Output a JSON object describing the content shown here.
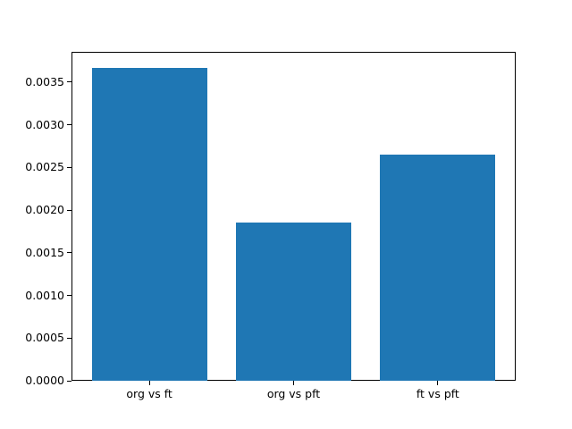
{
  "chart_data": {
    "type": "bar",
    "title": "",
    "xlabel": "",
    "ylabel": "",
    "categories": [
      "org vs ft",
      "org vs pft",
      "ft vs pft"
    ],
    "values": [
      0.00367,
      0.00185,
      0.00265
    ],
    "ylim": [
      0,
      0.0038535
    ],
    "yticks": [
      {
        "v": 0.0,
        "label": "0.0000"
      },
      {
        "v": 0.0005,
        "label": "0.0005"
      },
      {
        "v": 0.001,
        "label": "0.0010"
      },
      {
        "v": 0.0015,
        "label": "0.0015"
      },
      {
        "v": 0.002,
        "label": "0.0020"
      },
      {
        "v": 0.0025,
        "label": "0.0025"
      },
      {
        "v": 0.003,
        "label": "0.0030"
      },
      {
        "v": 0.0035,
        "label": "0.0035"
      }
    ],
    "grid": false,
    "legend_position": "none",
    "bar_color": "#1f77b4"
  },
  "colors": {
    "bar": "#1f77b4",
    "spine": "#000000",
    "text": "#000000",
    "background": "#ffffff"
  }
}
